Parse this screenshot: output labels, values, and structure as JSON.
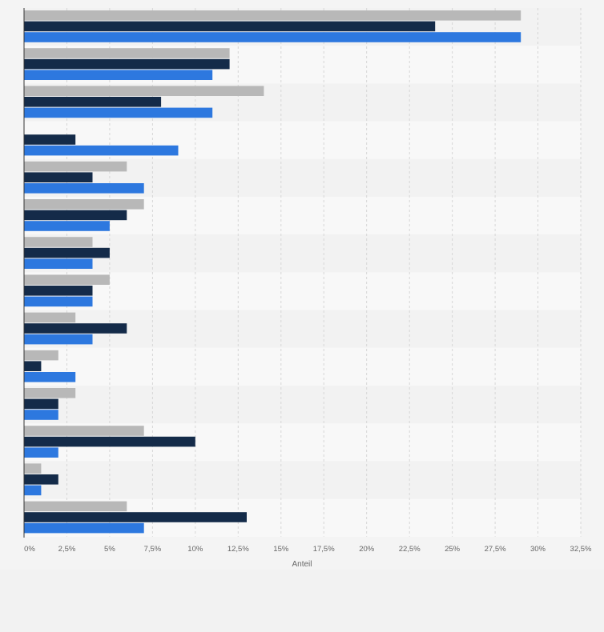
{
  "chart_data": {
    "type": "bar",
    "orientation": "horizontal",
    "xlabel": "Anteil",
    "x_ticks": [
      "0%",
      "2,5%",
      "5%",
      "7,5%",
      "10%",
      "12,5%",
      "15%",
      "17,5%",
      "20%",
      "22,5%",
      "25%",
      "27,5%",
      "30%",
      "32,5%"
    ],
    "xlim": [
      0,
      32.5
    ],
    "grid": true,
    "category_count": 14,
    "series": [
      {
        "color": "#b8b8b8",
        "values": [
          29,
          12,
          14,
          0,
          6,
          7,
          4,
          5,
          3,
          2,
          3,
          7,
          1,
          6
        ]
      },
      {
        "color": "#142b49",
        "values": [
          24,
          12,
          8,
          3,
          4,
          6,
          5,
          4,
          6,
          1,
          2,
          10,
          2,
          13
        ]
      },
      {
        "color": "#2d78df",
        "values": [
          29,
          11,
          11,
          9,
          7,
          5,
          4,
          4,
          4,
          3,
          2,
          2,
          1,
          7
        ]
      }
    ]
  }
}
